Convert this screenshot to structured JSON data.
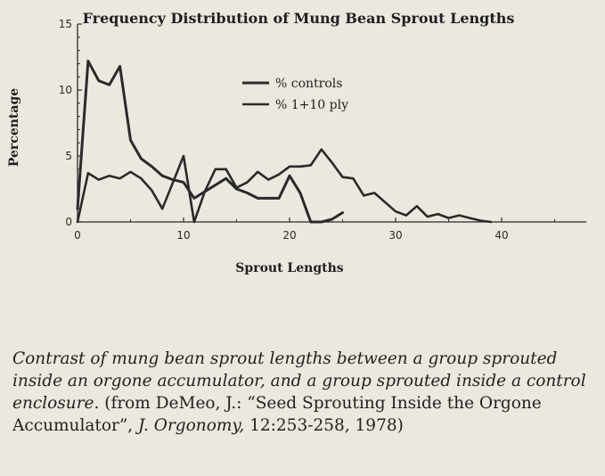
{
  "chart_data": {
    "type": "line",
    "title": "Frequency Distribution of Mung Bean Sprout Lengths",
    "xlabel": "Sprout Lengths",
    "ylabel": "Percentage",
    "xlim": [
      0,
      48
    ],
    "ylim": [
      0,
      15
    ],
    "xticks": [
      0,
      10,
      20,
      30,
      40
    ],
    "yticks": [
      0,
      5,
      10,
      15
    ],
    "grid": false,
    "legend_position": "upper-center",
    "series": [
      {
        "name": "% controls",
        "color": "#2a2a2a",
        "x": [
          0,
          1,
          2,
          3,
          4,
          5,
          6,
          7,
          8,
          9,
          10,
          11,
          12,
          13,
          14,
          15,
          16,
          17,
          18,
          19,
          20,
          21,
          22,
          23,
          24,
          25
        ],
        "y": [
          1,
          12.2,
          10.7,
          10.4,
          11.8,
          6.2,
          4.8,
          4.2,
          3.5,
          3.2,
          3,
          1.8,
          2.3,
          2.8,
          3.3,
          2.5,
          2.2,
          1.8,
          1.8,
          1.8,
          3.5,
          2.2,
          0,
          0,
          0.2,
          0.7
        ]
      },
      {
        "name": "% 1+10 ply",
        "color": "#2a2a2a",
        "x": [
          0,
          1,
          2,
          3,
          4,
          5,
          6,
          7,
          8,
          9,
          10,
          11,
          12,
          13,
          14,
          15,
          16,
          17,
          18,
          19,
          20,
          21,
          22,
          23,
          24,
          25,
          26,
          27,
          28,
          29,
          30,
          31,
          32,
          33,
          34,
          35,
          36,
          37,
          38,
          39
        ],
        "y": [
          0,
          3.7,
          3.2,
          3.5,
          3.3,
          3.8,
          3.3,
          2.4,
          1,
          3,
          5,
          0,
          2.3,
          4,
          4,
          2.6,
          3,
          3.8,
          3.2,
          3.6,
          4.2,
          4.2,
          4.3,
          5.5,
          4.5,
          3.4,
          3.3,
          2,
          2.2,
          1.5,
          0.8,
          0.5,
          1.2,
          0.4,
          0.6,
          0.3,
          0.5,
          0.3,
          0.1,
          0
        ]
      }
    ]
  },
  "caption": {
    "italic_text": "Contrast of mung bean sprout lengths between a group sprouted inside an orgone accumulator, and a group sprouted inside a control enclosure.",
    "citation_prefix": " (from DeMeo, J.: “Seed Sprouting Inside the Orgone Accumulator”, ",
    "citation_journal": "J. Orgonomy,",
    "citation_suffix": " 12:253-258, 1978)"
  }
}
